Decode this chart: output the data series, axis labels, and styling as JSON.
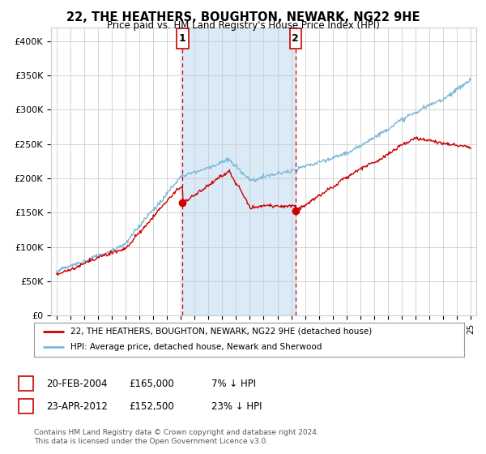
{
  "title": "22, THE HEATHERS, BOUGHTON, NEWARK, NG22 9HE",
  "subtitle": "Price paid vs. HM Land Registry's House Price Index (HPI)",
  "legend_label_red": "22, THE HEATHERS, BOUGHTON, NEWARK, NG22 9HE (detached house)",
  "legend_label_blue": "HPI: Average price, detached house, Newark and Sherwood",
  "footnote": "Contains HM Land Registry data © Crown copyright and database right 2024.\nThis data is licensed under the Open Government Licence v3.0.",
  "table_rows": [
    [
      "1",
      "20-FEB-2004",
      "£165,000",
      "7% ↓ HPI"
    ],
    [
      "2",
      "23-APR-2012",
      "£152,500",
      "23% ↓ HPI"
    ]
  ],
  "sale1_date_num": 2004.12,
  "sale1_price": 165000,
  "sale2_date_num": 2012.31,
  "sale2_price": 152500,
  "hpi_color": "#7ab8d9",
  "sale_color": "#cc0000",
  "vline_color": "#cc0000",
  "shaded_color": "#daeaf7",
  "background_color": "#ffffff",
  "grid_color": "#cccccc",
  "ylim_min": 0,
  "ylim_max": 420000,
  "xlim_min": 1994.6,
  "xlim_max": 2025.4
}
